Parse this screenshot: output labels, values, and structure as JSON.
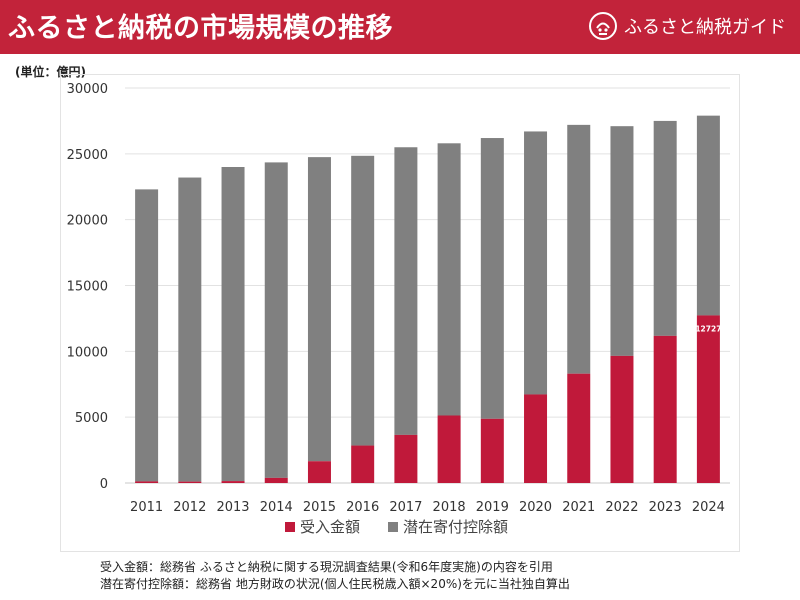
{
  "header": {
    "title": "ふるさと納税の市場規模の推移",
    "brand_name": "ふるさと納税ガイド"
  },
  "unit_label": "(単位：億円)",
  "colors": {
    "accent": "#c2233a",
    "received": "#c0193a",
    "potential": "#808080"
  },
  "chart_data": {
    "type": "bar",
    "stacked": true,
    "title": "ふるさと納税の市場規模の推移",
    "ylabel": "(単位：億円)",
    "xlabel": "",
    "ylim": [
      0,
      30000
    ],
    "yticks": [
      0,
      5000,
      10000,
      15000,
      20000,
      25000,
      30000
    ],
    "categories": [
      "2011",
      "2012",
      "2013",
      "2014",
      "2015",
      "2016",
      "2017",
      "2018",
      "2019",
      "2020",
      "2021",
      "2022",
      "2023",
      "2024"
    ],
    "series": [
      {
        "name": "受入金額",
        "color": "#c0193a",
        "values": [
          121,
          104,
          146,
          389,
          1653,
          2844,
          3653,
          5127,
          4875,
          6725,
          8302,
          9654,
          11175,
          12727
        ]
      },
      {
        "name": "潜在寄付控除額",
        "color": "#808080",
        "values": [
          22179,
          23096,
          23854,
          23961,
          23097,
          22006,
          21847,
          20673,
          21325,
          19975,
          18898,
          17446,
          16325,
          15173
        ]
      }
    ],
    "totals": [
      22300,
      23200,
      24000,
      24350,
      24750,
      24850,
      25500,
      25800,
      26200,
      26700,
      27200,
      27100,
      27500,
      27900
    ],
    "data_labels": [
      {
        "category": "2024",
        "series": "受入金額",
        "text": "12727"
      }
    ],
    "legend": "bottom-center",
    "grid": true
  },
  "sources": [
    "受入金額：総務省 ふるさと納税に関する現況調査結果(令和6年度実施)の内容を引用",
    "潜在寄付控除額：総務省 地方財政の状況(個人住民税歳入額×20%)を元に当社独自算出"
  ]
}
